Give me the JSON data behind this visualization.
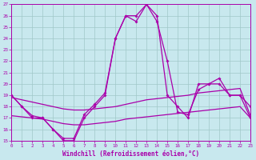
{
  "xlabel": "Windchill (Refroidissement éolien,°C)",
  "bg_color": "#c8e8ee",
  "grid_color": "#a0c8c8",
  "line_color": "#aa00aa",
  "xlim_min": 0,
  "xlim_max": 23,
  "ylim_min": 15,
  "ylim_max": 27,
  "xticks": [
    0,
    1,
    2,
    3,
    4,
    5,
    6,
    7,
    8,
    9,
    10,
    11,
    12,
    13,
    14,
    15,
    16,
    17,
    18,
    19,
    20,
    21,
    22,
    23
  ],
  "yticks": [
    15,
    16,
    17,
    18,
    19,
    20,
    21,
    22,
    23,
    24,
    25,
    26,
    27
  ],
  "main_y": [
    19,
    18,
    17,
    17,
    16,
    15,
    15,
    17,
    18,
    19,
    24,
    26,
    26,
    27,
    26,
    19,
    18,
    17,
    20,
    20,
    20.5,
    19,
    19,
    18
  ],
  "line2_y": [
    19,
    18,
    17.2,
    17,
    16,
    15.2,
    15.2,
    17.3,
    18.2,
    19.2,
    24,
    26,
    25.5,
    27,
    25.5,
    22,
    17.5,
    17.3,
    19.5,
    20,
    20,
    19,
    19,
    17
  ],
  "trend_hi": [
    18.8,
    18.6,
    18.4,
    18.2,
    18.0,
    17.8,
    17.7,
    17.7,
    17.8,
    17.9,
    18.0,
    18.2,
    18.4,
    18.6,
    18.7,
    18.8,
    18.9,
    19.0,
    19.2,
    19.3,
    19.4,
    19.5,
    19.6,
    17.2
  ],
  "trend_lo": [
    17.2,
    17.1,
    17.0,
    16.9,
    16.7,
    16.5,
    16.4,
    16.4,
    16.5,
    16.6,
    16.7,
    16.9,
    17.0,
    17.1,
    17.2,
    17.3,
    17.4,
    17.5,
    17.6,
    17.7,
    17.8,
    17.9,
    18.0,
    17.0
  ]
}
